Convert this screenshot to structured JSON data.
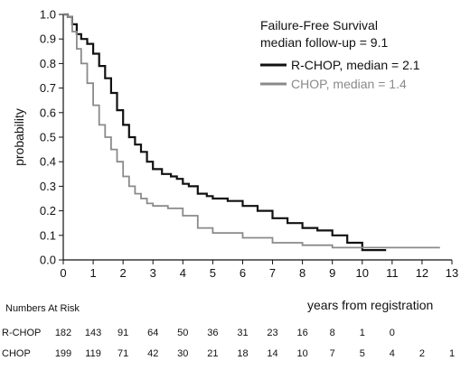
{
  "chart_data": {
    "type": "line",
    "title": "Failure-Free Survival",
    "subtitle": "median follow-up = 9.1",
    "xlabel": "years from registration",
    "ylabel": "probability",
    "xlim": [
      0,
      13
    ],
    "ylim": [
      0,
      1.0
    ],
    "x_ticks": [
      0,
      1,
      2,
      3,
      4,
      5,
      6,
      7,
      8,
      9,
      10,
      11,
      12,
      13
    ],
    "y_ticks": [
      0.0,
      0.1,
      0.2,
      0.3,
      0.4,
      0.5,
      0.6,
      0.7,
      0.8,
      0.9,
      1.0
    ],
    "y_tick_labels": [
      "0.0",
      "0.1",
      "0.2",
      "0.3",
      "0.4",
      "0.5",
      "0.6",
      "0.7",
      "0.8",
      "0.9",
      "1.0"
    ],
    "grid": false,
    "legend_position": "top-right",
    "series": [
      {
        "name": "R-CHOP, median = 2.1",
        "color": "#111111",
        "points": [
          [
            0,
            1.0
          ],
          [
            0.15,
            0.99
          ],
          [
            0.3,
            0.96
          ],
          [
            0.45,
            0.92
          ],
          [
            0.6,
            0.9
          ],
          [
            0.8,
            0.88
          ],
          [
            1.0,
            0.84
          ],
          [
            1.2,
            0.79
          ],
          [
            1.4,
            0.74
          ],
          [
            1.6,
            0.68
          ],
          [
            1.8,
            0.61
          ],
          [
            2.0,
            0.55
          ],
          [
            2.2,
            0.5
          ],
          [
            2.4,
            0.47
          ],
          [
            2.6,
            0.44
          ],
          [
            2.8,
            0.4
          ],
          [
            3.0,
            0.37
          ],
          [
            3.3,
            0.35
          ],
          [
            3.6,
            0.34
          ],
          [
            3.8,
            0.33
          ],
          [
            4.0,
            0.31
          ],
          [
            4.2,
            0.3
          ],
          [
            4.5,
            0.27
          ],
          [
            4.8,
            0.26
          ],
          [
            5.0,
            0.25
          ],
          [
            5.5,
            0.24
          ],
          [
            6.0,
            0.22
          ],
          [
            6.5,
            0.2
          ],
          [
            7.0,
            0.17
          ],
          [
            7.5,
            0.15
          ],
          [
            8.0,
            0.13
          ],
          [
            8.5,
            0.12
          ],
          [
            9.0,
            0.1
          ],
          [
            9.5,
            0.07
          ],
          [
            10.0,
            0.04
          ],
          [
            10.8,
            0.04
          ]
        ]
      },
      {
        "name": "CHOP, median = 1.4",
        "color": "#8a8a8a",
        "points": [
          [
            0,
            1.0
          ],
          [
            0.15,
            0.99
          ],
          [
            0.3,
            0.93
          ],
          [
            0.45,
            0.86
          ],
          [
            0.6,
            0.8
          ],
          [
            0.8,
            0.72
          ],
          [
            1.0,
            0.63
          ],
          [
            1.2,
            0.55
          ],
          [
            1.4,
            0.5
          ],
          [
            1.6,
            0.45
          ],
          [
            1.8,
            0.4
          ],
          [
            2.0,
            0.34
          ],
          [
            2.2,
            0.3
          ],
          [
            2.4,
            0.27
          ],
          [
            2.6,
            0.25
          ],
          [
            2.8,
            0.23
          ],
          [
            3.0,
            0.22
          ],
          [
            3.5,
            0.21
          ],
          [
            4.0,
            0.18
          ],
          [
            4.5,
            0.13
          ],
          [
            5.0,
            0.11
          ],
          [
            6.0,
            0.09
          ],
          [
            7.0,
            0.07
          ],
          [
            8.0,
            0.06
          ],
          [
            9.0,
            0.05
          ],
          [
            10.0,
            0.05
          ],
          [
            11.0,
            0.05
          ],
          [
            12.6,
            0.05
          ]
        ]
      }
    ],
    "numbers_at_risk": {
      "title": "Numbers At Risk",
      "rows": [
        {
          "label": "R-CHOP",
          "values": [
            "182",
            "143",
            "91",
            "64",
            "50",
            "36",
            "31",
            "23",
            "16",
            "8",
            "1",
            "0"
          ]
        },
        {
          "label": "CHOP",
          "values": [
            "199",
            "119",
            "71",
            "42",
            "30",
            "21",
            "18",
            "14",
            "10",
            "7",
            "5",
            "4",
            "2",
            "1"
          ]
        }
      ]
    }
  }
}
